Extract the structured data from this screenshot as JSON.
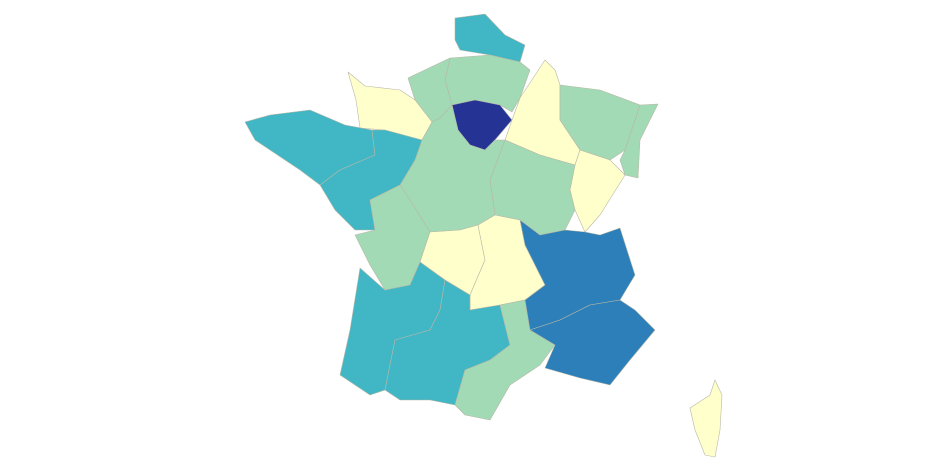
{
  "map": {
    "regions": [
      {
        "color": "#41b6c4"
      },
      {
        "color": "#a1dab4"
      },
      {
        "color": "#a1dab4"
      },
      {
        "color": "#ffffcc"
      },
      {
        "color": "#253494"
      },
      {
        "color": "#ffffcc"
      },
      {
        "color": "#a1dab4"
      },
      {
        "color": "#a1dab4"
      },
      {
        "color": "#ffffcc"
      },
      {
        "color": "#a1dab4"
      },
      {
        "color": "#a1dab4"
      },
      {
        "color": "#41b6c4"
      },
      {
        "color": "#41b6c4"
      },
      {
        "color": "#a1dab4"
      },
      {
        "color": "#ffffcc"
      },
      {
        "color": "#ffffcc"
      },
      {
        "color": "#41b6c4"
      },
      {
        "color": "#41b6c4"
      },
      {
        "color": "#a1dab4"
      },
      {
        "color": "#2c7fb8"
      },
      {
        "color": "#2c7fb8"
      },
      {
        "color": "#ffffcc"
      }
    ]
  }
}
